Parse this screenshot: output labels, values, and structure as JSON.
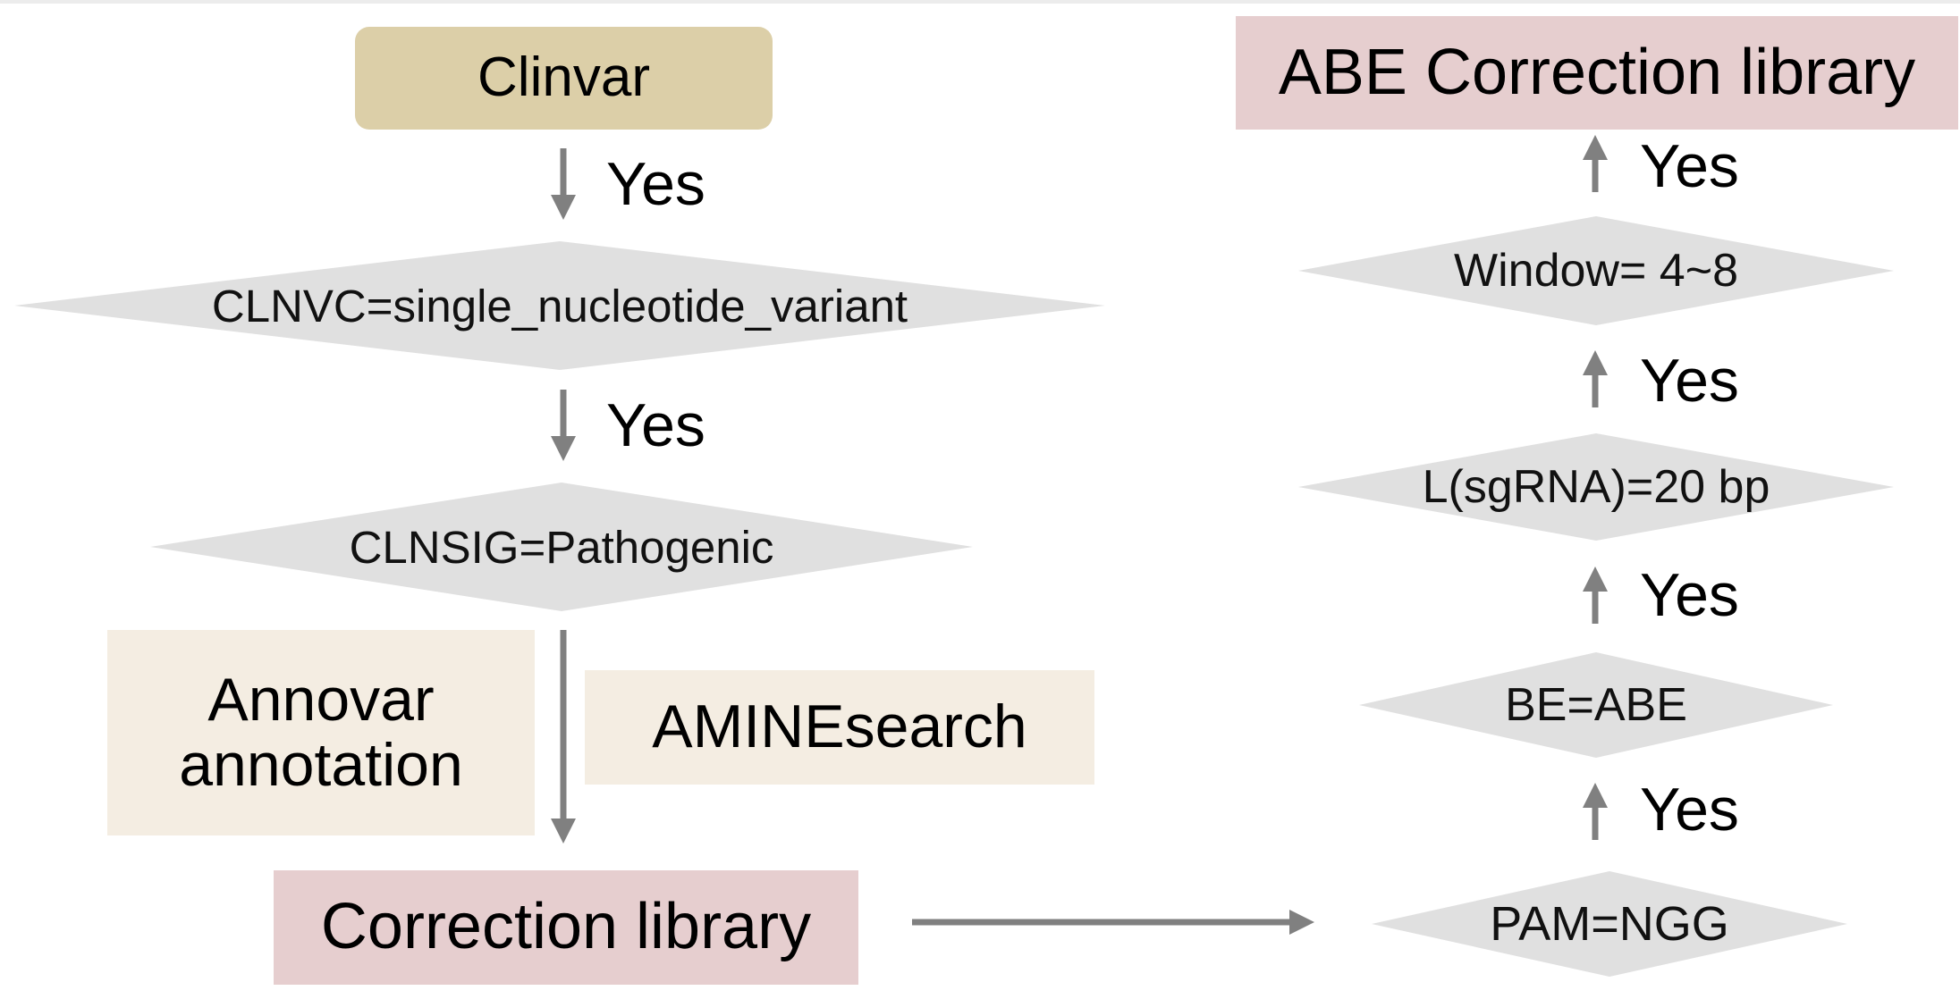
{
  "colors": {
    "tan": "#dccfa8",
    "cream": "#f4ede2",
    "pink": "#e6cecf",
    "diamond": "#e0e0e0",
    "arrow": "#808080"
  },
  "left_flow": {
    "source": "Clinvar",
    "edge1": "Yes",
    "condition1": "CLNVC=single_nucleotide_variant",
    "edge2": "Yes",
    "condition2": "CLNSIG=Pathogenic",
    "tool1_line1": "Annovar",
    "tool1_line2": "annotation",
    "tool2": "AMINEsearch",
    "output": "Correction library"
  },
  "right_flow": {
    "condition_pam": "PAM=NGG",
    "edge_pam": "Yes",
    "condition_be": "BE=ABE",
    "edge_be": "Yes",
    "condition_len": "L(sgRNA)=20 bp",
    "edge_len": "Yes",
    "condition_window": "Window= 4~8",
    "edge_window": "Yes",
    "output": "ABE Correction library"
  }
}
